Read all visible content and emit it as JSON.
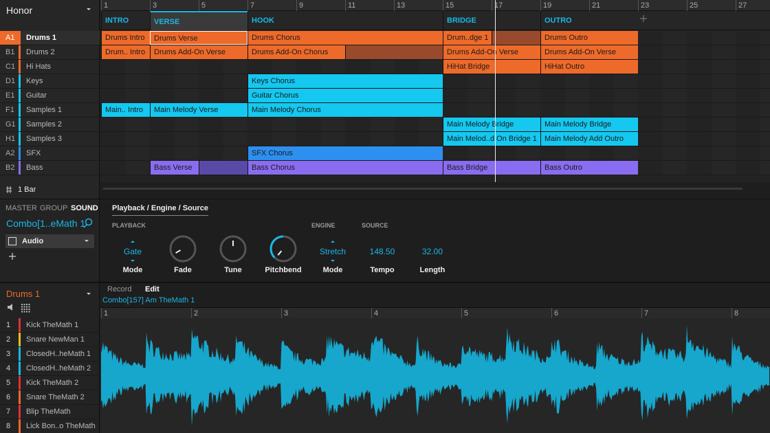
{
  "header": {
    "project": "Honor"
  },
  "ruler": {
    "bars": [
      "1",
      "3",
      "5",
      "7",
      "9",
      "11",
      "13",
      "15",
      "17",
      "19",
      "21",
      "23",
      "25",
      "27"
    ]
  },
  "sections": [
    "INTRO",
    "VERSE",
    "HOOK",
    "BRIDGE",
    "OUTRO"
  ],
  "tracks": [
    {
      "id": "A1",
      "name": "Drums 1"
    },
    {
      "id": "B1",
      "name": "Drums 2"
    },
    {
      "id": "C1",
      "name": "Hi Hats"
    },
    {
      "id": "D1",
      "name": "Keys"
    },
    {
      "id": "E1",
      "name": "Guitar"
    },
    {
      "id": "F1",
      "name": "Samples 1"
    },
    {
      "id": "G1",
      "name": "Samples 2"
    },
    {
      "id": "H1",
      "name": "Samples 3"
    },
    {
      "id": "A2",
      "name": "SFX"
    },
    {
      "id": "B2",
      "name": "Bass"
    }
  ],
  "lanes": [
    [
      "Drums Intro",
      "Drums Verse",
      "Drums Chorus",
      "Drum..dge 1",
      "Drums Outro"
    ],
    [
      "Drum.. Intro",
      "Drums Add-On Verse",
      "Drums Add-On Chorus",
      "Drums Add-On Verse",
      "Drums Add-On Verse"
    ],
    [
      "HiHat Bridge",
      "HiHat Outro"
    ],
    [
      "Keys Chorus"
    ],
    [
      "Guitar Chorus"
    ],
    [
      "Main.. Intro",
      "Main Melody Verse",
      "Main Melody Chorus"
    ],
    [
      "Main Melody Bridge",
      "Main Melody Bridge"
    ],
    [
      "Main Melod..d On Bridge 1",
      "Main Melody Add Outro"
    ],
    [
      "SFX Chorus"
    ],
    [
      "Bass Verse",
      "Bass Chorus",
      "Bass Bridge",
      "Bass Outro"
    ]
  ],
  "grid_setting": "1 Bar",
  "sound_panel": {
    "tabs": [
      "MASTER",
      "GROUP",
      "SOUND"
    ],
    "sound_name": "Combo[1..eMath 1",
    "plugin": "Audio",
    "page_tab": "Playback / Engine / Source",
    "headings": [
      "PLAYBACK",
      "ENGINE",
      "SOURCE"
    ],
    "controls": [
      {
        "value": "Gate",
        "label": "Mode"
      },
      {
        "label": "Fade"
      },
      {
        "label": "Tune"
      },
      {
        "label": "Pitchbend"
      },
      {
        "value": "Stretch",
        "label": "Mode"
      },
      {
        "value": "148.50",
        "label": "Tempo"
      },
      {
        "value": "32.00",
        "label": "Length"
      }
    ]
  },
  "editor": {
    "group": "Drums 1",
    "tabs": [
      "Record",
      "Edit"
    ],
    "sample": "Combo[157] Am TheMath 1",
    "ruler": [
      "1",
      "2",
      "3",
      "4",
      "5",
      "6",
      "7",
      "8"
    ],
    "sounds": [
      {
        "index": "1",
        "name": "Kick TheMath 1"
      },
      {
        "index": "2",
        "name": "Snare NewMan 1"
      },
      {
        "index": "3",
        "name": "ClosedH..heMath 1"
      },
      {
        "index": "4",
        "name": "ClosedH..heMath 2"
      },
      {
        "index": "5",
        "name": "Kick TheMath 2"
      },
      {
        "index": "6",
        "name": "Snare TheMath 2"
      },
      {
        "index": "7",
        "name": "Blip TheMath"
      },
      {
        "index": "8",
        "name": "Lick Bon..o TheMath"
      }
    ]
  }
}
